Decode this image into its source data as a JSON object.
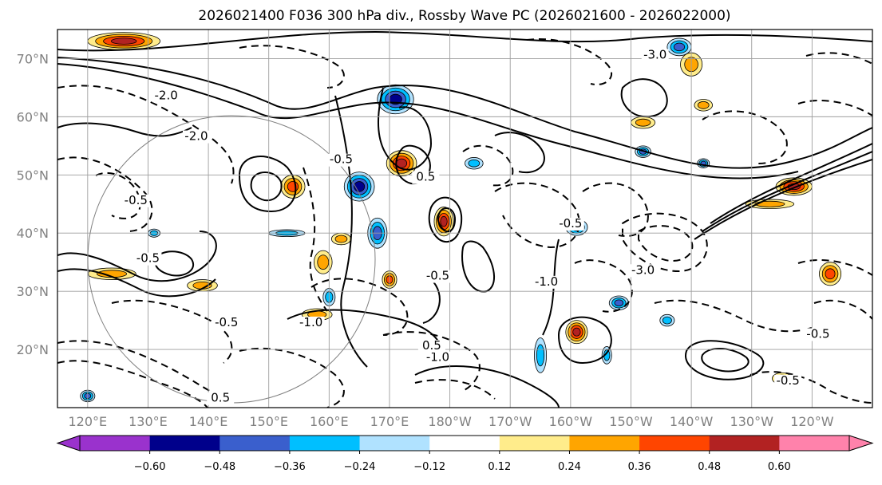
{
  "chart_data": {
    "type": "contour-map",
    "title": "2026021400 F036 300 hPa div., Rossby Wave PC (2026021600 - 2026022000)",
    "lat_ticks": [
      "70°N",
      "60°N",
      "50°N",
      "40°N",
      "30°N",
      "20°N"
    ],
    "lat_values": [
      70,
      60,
      50,
      40,
      30,
      20
    ],
    "lon_ticks": [
      "120°E",
      "130°E",
      "140°E",
      "150°E",
      "160°E",
      "170°E",
      "180°W",
      "170°W",
      "160°W",
      "150°W",
      "140°W",
      "130°W",
      "120°W"
    ],
    "lon_values": [
      120,
      130,
      140,
      150,
      160,
      170,
      180,
      190,
      200,
      210,
      220,
      230,
      240
    ],
    "lon_range": [
      115,
      250
    ],
    "lat_range": [
      10,
      75
    ],
    "colorbar": {
      "levels": [
        -0.6,
        -0.48,
        -0.36,
        -0.24,
        -0.12,
        0.12,
        0.24,
        0.36,
        0.48,
        0.6
      ],
      "tick_labels": [
        "−0.60",
        "−0.48",
        "−0.36",
        "−0.24",
        "−0.12",
        "0.12",
        "0.24",
        "0.36",
        "0.48",
        "0.60"
      ],
      "colors": [
        "#9a32cd",
        "#00008b",
        "#3a5fcd",
        "#00bfff",
        "#b0e2ff",
        "#ffffff",
        "#ffec8b",
        "#ffa500",
        "#ff4500",
        "#b22222",
        "#ff82ab"
      ],
      "extend": "both"
    },
    "contour_labels": [
      {
        "text": "-0.5",
        "lon": 162,
        "lat": 52
      },
      {
        "text": "-1.0",
        "lon": 178,
        "lat": 18
      },
      {
        "text": "-0.5",
        "lon": 130,
        "lat": 35
      },
      {
        "text": "-1.0",
        "lon": 157,
        "lat": 24
      },
      {
        "text": "0.5",
        "lon": 176,
        "lat": 49
      },
      {
        "text": "0.5",
        "lon": 177,
        "lat": 20
      },
      {
        "text": "-0.5",
        "lon": 178,
        "lat": 32
      },
      {
        "text": "-0.5",
        "lon": 200,
        "lat": 41
      },
      {
        "text": "-1.0",
        "lon": 196,
        "lat": 31
      },
      {
        "text": "-0.5",
        "lon": 241,
        "lat": 22
      },
      {
        "text": "-0.5",
        "lon": 236,
        "lat": 14
      },
      {
        "text": "-0.5",
        "lon": 143,
        "lat": 24
      },
      {
        "text": "-3.0",
        "lon": 214,
        "lat": 70
      },
      {
        "text": "-2.0",
        "lon": 133,
        "lat": 63
      },
      {
        "text": "-2.0",
        "lon": 138,
        "lat": 56
      },
      {
        "text": "-3.0",
        "lon": 212,
        "lat": 33
      },
      {
        "text": "0.5",
        "lon": 142,
        "lat": 11
      },
      {
        "text": "-0.5",
        "lon": 128,
        "lat": 45
      }
    ],
    "positive_blobs": [
      {
        "lon": 126,
        "lat": 73,
        "rx": 6,
        "ry": 1.5,
        "level": 0.48
      },
      {
        "lon": 172,
        "lat": 52,
        "rx": 2.5,
        "ry": 2.2,
        "level": 0.48
      },
      {
        "lon": 179,
        "lat": 42,
        "rx": 1.6,
        "ry": 2.5,
        "level": 0.48
      },
      {
        "lon": 154,
        "lat": 48,
        "rx": 2,
        "ry": 2,
        "level": 0.36
      },
      {
        "lon": 201,
        "lat": 23,
        "rx": 1.8,
        "ry": 2,
        "level": 0.48
      },
      {
        "lon": 237,
        "lat": 48,
        "rx": 3,
        "ry": 1.5,
        "level": 0.48
      },
      {
        "lon": 243,
        "lat": 33,
        "rx": 1.8,
        "ry": 2,
        "level": 0.36
      },
      {
        "lon": 170,
        "lat": 32,
        "rx": 1.2,
        "ry": 1.5,
        "level": 0.36
      },
      {
        "lon": 220,
        "lat": 69,
        "rx": 1.8,
        "ry": 2,
        "level": 0.24
      },
      {
        "lon": 212,
        "lat": 59,
        "rx": 2,
        "ry": 1,
        "level": 0.24
      },
      {
        "lon": 124,
        "lat": 33,
        "rx": 4,
        "ry": 1,
        "level": 0.24
      },
      {
        "lon": 139,
        "lat": 31,
        "rx": 2.5,
        "ry": 1,
        "level": 0.24
      },
      {
        "lon": 159,
        "lat": 35,
        "rx": 1.5,
        "ry": 2,
        "level": 0.24
      },
      {
        "lon": 162,
        "lat": 39,
        "rx": 1.6,
        "ry": 1,
        "level": 0.24
      },
      {
        "lon": 235,
        "lat": 15,
        "rx": 1.6,
        "ry": 1,
        "level": 0.24
      },
      {
        "lon": 158,
        "lat": 26,
        "rx": 2.5,
        "ry": 1,
        "level": 0.24
      },
      {
        "lon": 222,
        "lat": 62,
        "rx": 1.5,
        "ry": 1,
        "level": 0.24
      },
      {
        "lon": 233,
        "lat": 45,
        "rx": 4,
        "ry": 0.8,
        "level": 0.24
      }
    ],
    "negative_blobs": [
      {
        "lon": 171,
        "lat": 63,
        "rx": 3,
        "ry": 2.5,
        "level": -0.48
      },
      {
        "lon": 165,
        "lat": 48,
        "rx": 2.5,
        "ry": 2.5,
        "level": -0.48
      },
      {
        "lon": 168,
        "lat": 40,
        "rx": 1.6,
        "ry": 2.6,
        "level": -0.36
      },
      {
        "lon": 201,
        "lat": 41,
        "rx": 1.8,
        "ry": 1.4,
        "level": -0.36
      },
      {
        "lon": 208,
        "lat": 28,
        "rx": 1.6,
        "ry": 1.2,
        "level": -0.36
      },
      {
        "lon": 218,
        "lat": 72,
        "rx": 2,
        "ry": 1.5,
        "level": -0.36
      },
      {
        "lon": 212,
        "lat": 54,
        "rx": 1.3,
        "ry": 1,
        "level": -0.36
      },
      {
        "lon": 222,
        "lat": 52,
        "rx": 1,
        "ry": 0.8,
        "level": -0.36
      },
      {
        "lon": 120,
        "lat": 12,
        "rx": 1.2,
        "ry": 1,
        "level": -0.36
      },
      {
        "lon": 184,
        "lat": 52,
        "rx": 1.5,
        "ry": 1,
        "level": -0.24
      },
      {
        "lon": 195,
        "lat": 19,
        "rx": 1,
        "ry": 3,
        "level": -0.24
      },
      {
        "lon": 206,
        "lat": 19,
        "rx": 0.8,
        "ry": 1.5,
        "level": -0.24
      },
      {
        "lon": 160,
        "lat": 29,
        "rx": 1,
        "ry": 1.5,
        "level": -0.24
      },
      {
        "lon": 216,
        "lat": 25,
        "rx": 1.2,
        "ry": 1,
        "level": -0.24
      },
      {
        "lon": 131,
        "lat": 40,
        "rx": 1,
        "ry": 0.7,
        "level": -0.24
      },
      {
        "lon": 153,
        "lat": 40,
        "rx": 3,
        "ry": 0.6,
        "level": -0.24
      }
    ],
    "grid": true
  }
}
